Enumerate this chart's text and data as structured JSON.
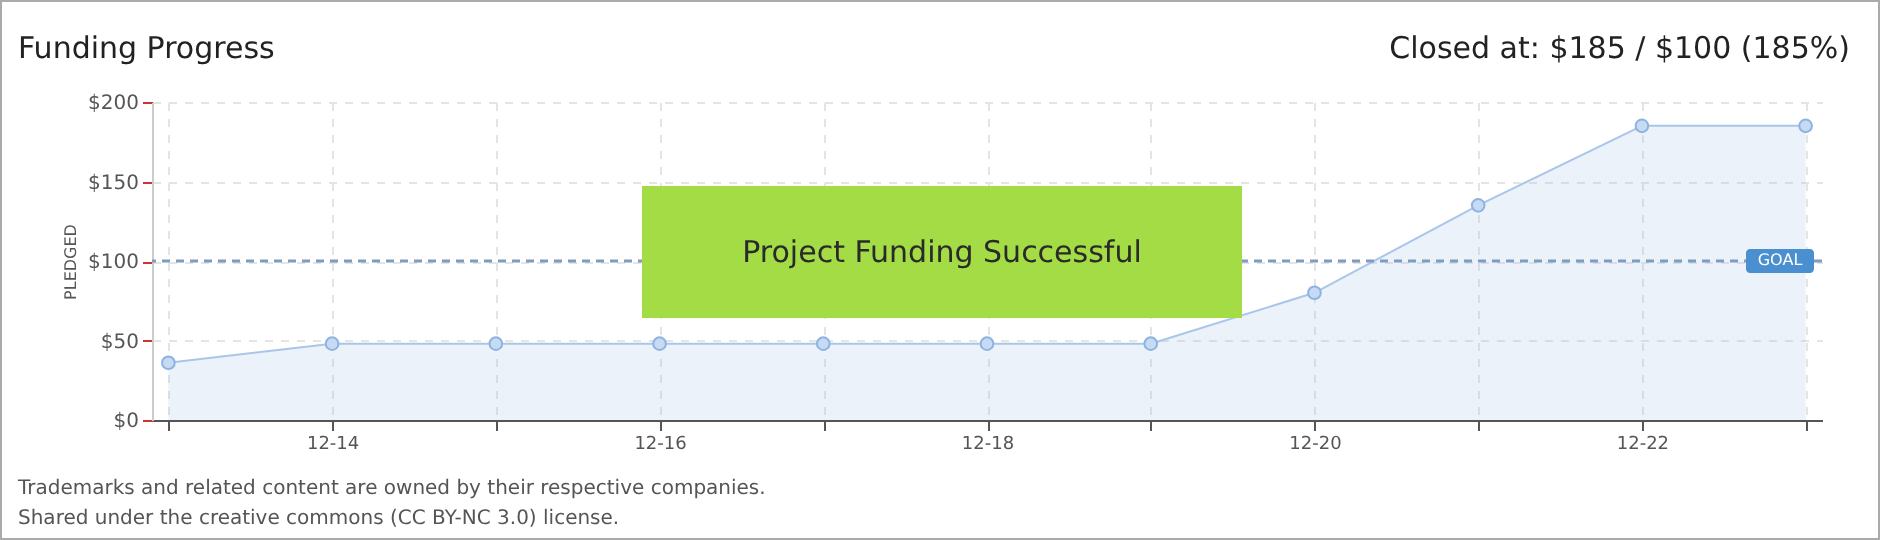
{
  "chart_data": {
    "type": "area",
    "title": "Funding Progress",
    "subtitle": "Closed at: $185 / $100 (185%)",
    "ylabel": "PLEDGED",
    "categories": [
      null,
      "12-14",
      null,
      "12-16",
      null,
      "12-18",
      null,
      "12-20",
      null,
      "12-22",
      null
    ],
    "series": [
      {
        "color": "#a9c6ea",
        "values": [
          36,
          48,
          48,
          48,
          48,
          48,
          48,
          80,
          135,
          185,
          185
        ]
      }
    ],
    "ylim": [
      0,
      200
    ],
    "yticks": [
      {
        "value": 0,
        "label": "$0"
      },
      {
        "value": 50,
        "label": "$50"
      },
      {
        "value": 100,
        "label": "$100"
      },
      {
        "value": 150,
        "label": "$150"
      },
      {
        "value": 200,
        "label": "$200"
      }
    ],
    "ref_lines": [
      {
        "axis": "y",
        "value": 100,
        "label": "GOAL",
        "color": "#7d9cc0",
        "line_style": "dashed"
      }
    ],
    "annotations": [
      "Project Funding Successful",
      "Trademarks and related content are owned by their respective companies.",
      "Shared under the creative commons (CC BY-NC 3.0) license."
    ],
    "grid": true,
    "marker": "circle"
  }
}
